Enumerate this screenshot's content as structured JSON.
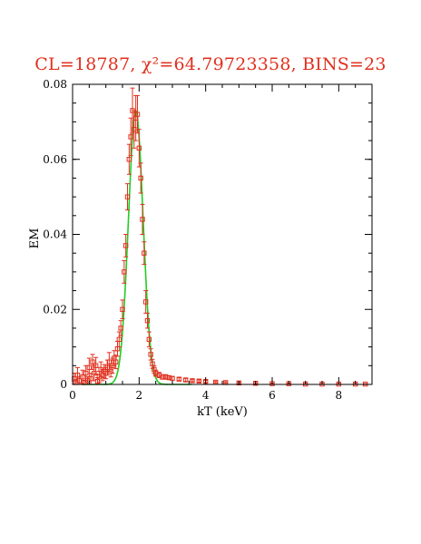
{
  "chart_data": {
    "type": "scatter",
    "title": "CL=18787, χ²=64.79723358, BINS=23",
    "xlabel": "kT (keV)",
    "ylabel": "EM",
    "xlim": [
      0,
      9
    ],
    "ylim": [
      0,
      0.08
    ],
    "xticks": [
      0,
      2,
      4,
      6,
      8
    ],
    "yticks": [
      0,
      0.02,
      0.04,
      0.06,
      0.08
    ],
    "x_tick_labels": [
      "0",
      "2",
      "4",
      "6",
      "8"
    ],
    "y_tick_labels": [
      "0",
      "0.02",
      "0.04",
      "0.06",
      "0.08"
    ],
    "grid": false,
    "colors": {
      "data": "#e0301e",
      "fit": "#22cc22",
      "axes": "#000000"
    },
    "series": [
      {
        "type": "scatter_with_errorbars",
        "points": [
          {
            "x": 0.05,
            "y": 0.0015,
            "err": 0.0015
          },
          {
            "x": 0.1,
            "y": 0.0005,
            "err": 0.0008
          },
          {
            "x": 0.15,
            "y": 0.0025,
            "err": 0.002
          },
          {
            "x": 0.2,
            "y": 0.001,
            "err": 0.001
          },
          {
            "x": 0.3,
            "y": 0.002,
            "err": 0.0018
          },
          {
            "x": 0.35,
            "y": 0.0005,
            "err": 0.0006
          },
          {
            "x": 0.4,
            "y": 0.003,
            "err": 0.002
          },
          {
            "x": 0.45,
            "y": 0.001,
            "err": 0.001
          },
          {
            "x": 0.5,
            "y": 0.0045,
            "err": 0.0025
          },
          {
            "x": 0.55,
            "y": 0.0015,
            "err": 0.0015
          },
          {
            "x": 0.6,
            "y": 0.006,
            "err": 0.002
          },
          {
            "x": 0.65,
            "y": 0.003,
            "err": 0.002
          },
          {
            "x": 0.7,
            "y": 0.005,
            "err": 0.0022
          },
          {
            "x": 0.75,
            "y": 0.0008,
            "err": 0.001
          },
          {
            "x": 0.8,
            "y": 0.002,
            "err": 0.0015
          },
          {
            "x": 0.85,
            "y": 0.004,
            "err": 0.002
          },
          {
            "x": 0.9,
            "y": 0.0025,
            "err": 0.0015
          },
          {
            "x": 0.95,
            "y": 0.0035,
            "err": 0.0018
          },
          {
            "x": 1.0,
            "y": 0.003,
            "err": 0.0015
          },
          {
            "x": 1.05,
            "y": 0.0045,
            "err": 0.002
          },
          {
            "x": 1.1,
            "y": 0.006,
            "err": 0.0025
          },
          {
            "x": 1.15,
            "y": 0.0035,
            "err": 0.0015
          },
          {
            "x": 1.2,
            "y": 0.005,
            "err": 0.002
          },
          {
            "x": 1.25,
            "y": 0.007,
            "err": 0.002
          },
          {
            "x": 1.3,
            "y": 0.006,
            "err": 0.0018
          },
          {
            "x": 1.35,
            "y": 0.0095,
            "err": 0.002
          },
          {
            "x": 1.4,
            "y": 0.012,
            "err": 0.002
          },
          {
            "x": 1.45,
            "y": 0.015,
            "err": 0.002
          },
          {
            "x": 1.5,
            "y": 0.02,
            "err": 0.0025
          },
          {
            "x": 1.55,
            "y": 0.03,
            "err": 0.003
          },
          {
            "x": 1.6,
            "y": 0.037,
            "err": 0.003
          },
          {
            "x": 1.65,
            "y": 0.05,
            "err": 0.0035
          },
          {
            "x": 1.7,
            "y": 0.06,
            "err": 0.004
          },
          {
            "x": 1.75,
            "y": 0.066,
            "err": 0.005
          },
          {
            "x": 1.8,
            "y": 0.073,
            "err": 0.006
          },
          {
            "x": 1.85,
            "y": 0.068,
            "err": 0.005
          },
          {
            "x": 1.9,
            "y": 0.071,
            "err": 0.006
          },
          {
            "x": 1.95,
            "y": 0.072,
            "err": 0.005
          },
          {
            "x": 2.0,
            "y": 0.063,
            "err": 0.005
          },
          {
            "x": 2.05,
            "y": 0.055,
            "err": 0.004
          },
          {
            "x": 2.1,
            "y": 0.044,
            "err": 0.004
          },
          {
            "x": 2.15,
            "y": 0.035,
            "err": 0.003
          },
          {
            "x": 2.2,
            "y": 0.022,
            "err": 0.003
          },
          {
            "x": 2.25,
            "y": 0.017,
            "err": 0.002
          },
          {
            "x": 2.3,
            "y": 0.012,
            "err": 0.002
          },
          {
            "x": 2.35,
            "y": 0.008,
            "err": 0.0015
          },
          {
            "x": 2.4,
            "y": 0.0055,
            "err": 0.0012
          },
          {
            "x": 2.45,
            "y": 0.004,
            "err": 0.001
          },
          {
            "x": 2.5,
            "y": 0.003,
            "err": 0.0008
          },
          {
            "x": 2.6,
            "y": 0.0025,
            "err": 0.0007
          },
          {
            "x": 2.7,
            "y": 0.002,
            "err": 0.0006
          },
          {
            "x": 2.8,
            "y": 0.002,
            "err": 0.0006
          },
          {
            "x": 2.9,
            "y": 0.0018,
            "err": 0.0005
          },
          {
            "x": 3.0,
            "y": 0.0016,
            "err": 0.0005
          },
          {
            "x": 3.2,
            "y": 0.0014,
            "err": 0.0004
          },
          {
            "x": 3.4,
            "y": 0.0012,
            "err": 0.0004
          },
          {
            "x": 3.6,
            "y": 0.001,
            "err": 0.0003
          },
          {
            "x": 3.8,
            "y": 0.0009,
            "err": 0.0003
          },
          {
            "x": 4.0,
            "y": 0.0008,
            "err": 0.0003
          },
          {
            "x": 4.3,
            "y": 0.0006,
            "err": 0.0002
          },
          {
            "x": 4.6,
            "y": 0.0005,
            "err": 0.0002
          },
          {
            "x": 5.0,
            "y": 0.0004,
            "err": 0.0002
          },
          {
            "x": 5.5,
            "y": 0.0003,
            "err": 0.0002
          },
          {
            "x": 6.0,
            "y": 0.0002,
            "err": 0.0001
          },
          {
            "x": 6.5,
            "y": 0.0002,
            "err": 0.0001
          },
          {
            "x": 7.0,
            "y": 0.0001,
            "err": 0.0001
          },
          {
            "x": 7.5,
            "y": 0.0001,
            "err": 0.0001
          },
          {
            "x": 8.0,
            "y": 0.0001,
            "err": 0.0001
          },
          {
            "x": 8.5,
            "y": 0.0001,
            "err": 0.0001
          },
          {
            "x": 8.8,
            "y": 0.0001,
            "err": 0.0001
          }
        ]
      },
      {
        "type": "line",
        "model": "gaussian",
        "amplitude": 0.073,
        "center": 1.9,
        "sigma": 0.22
      }
    ]
  }
}
